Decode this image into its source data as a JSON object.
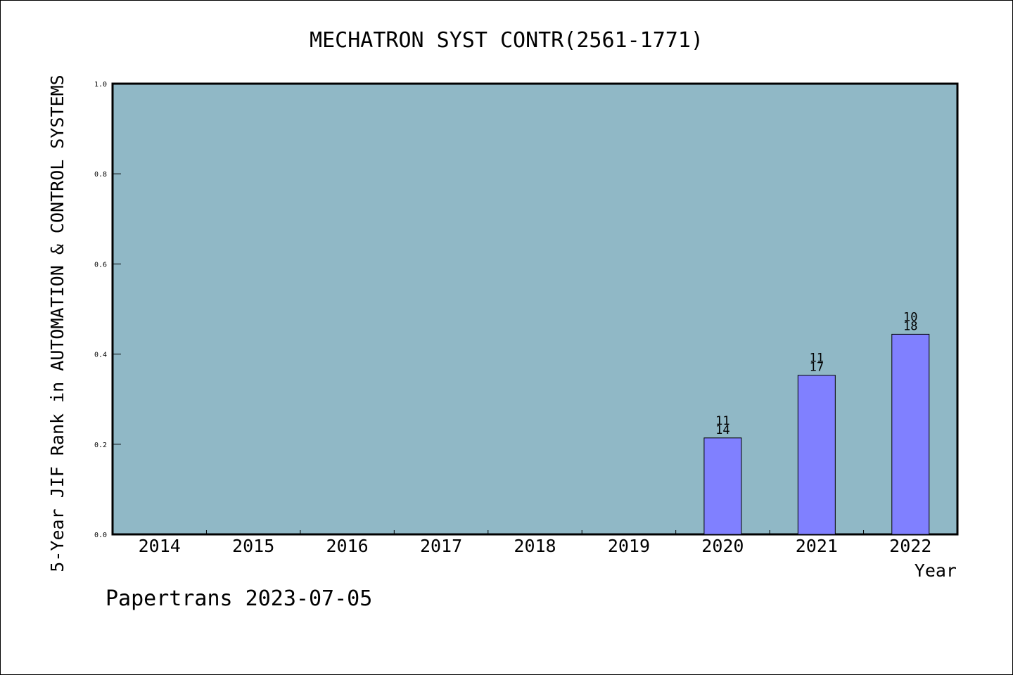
{
  "chart_data": {
    "type": "bar",
    "title": "MECHATRON SYST CONTR(2561-1771)",
    "xlabel": "Year",
    "ylabel": "5-Year JIF Rank in AUTOMATION & CONTROL SYSTEMS",
    "categories": [
      "2014",
      "2015",
      "2016",
      "2017",
      "2018",
      "2019",
      "2020",
      "2021",
      "2022"
    ],
    "values": [
      null,
      null,
      null,
      null,
      null,
      null,
      0.214,
      0.353,
      0.444
    ],
    "bar_labels": [
      null,
      null,
      null,
      null,
      null,
      null,
      [
        "11",
        "14"
      ],
      [
        "11",
        "17"
      ],
      [
        "10",
        "18"
      ]
    ],
    "ylim": [
      0,
      1.0
    ],
    "yticks": [
      "0.0",
      "0.2",
      "0.4",
      "0.6",
      "0.8",
      "1.0"
    ],
    "grid": false,
    "colors": {
      "plot_background": "#90b8c6",
      "bar_fill": "#8080ff",
      "bar_edge": "#000000"
    }
  },
  "footer": "Papertrans 2023-07-05"
}
